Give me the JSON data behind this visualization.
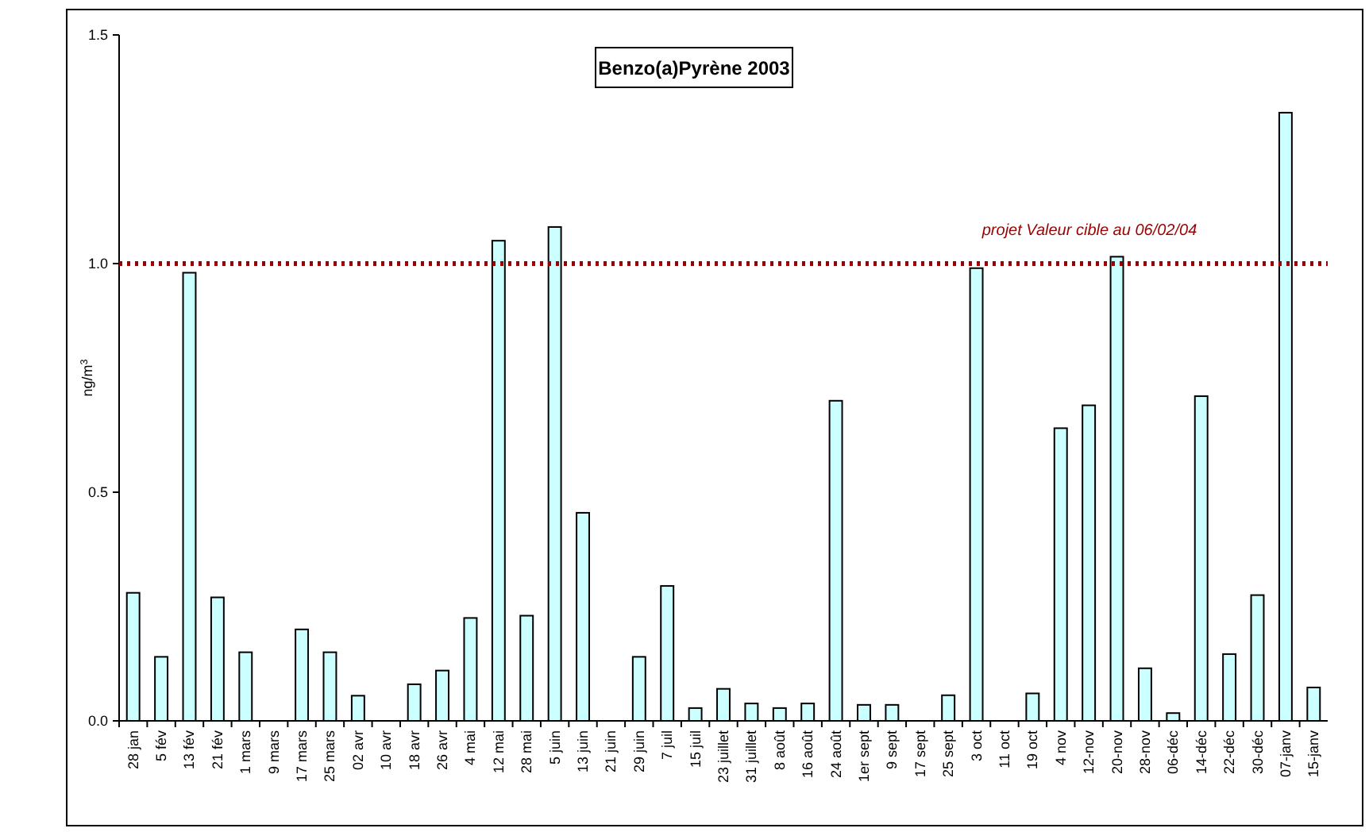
{
  "chart_data": {
    "type": "bar",
    "title": "Benzo(a)Pyrène 2003",
    "ylabel": "ng/m$^{3}$",
    "categories": [
      "28 jan",
      "5 fév",
      "13 fév",
      "21 fév",
      "1 mars",
      "9 mars",
      "17 mars",
      "25 mars",
      "02 avr",
      "10 avr",
      "18 avr",
      "26 avr",
      "4 mai",
      "12 mai",
      "28 mai",
      "5 juin",
      "13 juin",
      "21 juin",
      "29 juin",
      "7 juil",
      "15 juil",
      "23 juillet",
      "31 juillet",
      "8 août",
      "16 août",
      "24 août",
      "1er sept",
      "9 sept",
      "17 sept",
      "25 sept",
      "3 oct",
      "11 oct",
      "19 oct",
      "4 nov",
      "12-nov",
      "20-nov",
      "28-nov",
      "06-déc",
      "14-déc",
      "22-déc",
      "30-déc",
      "07-janv",
      "15-janv"
    ],
    "values": [
      0.28,
      0.14,
      0.98,
      0.27,
      0.15,
      null,
      0.2,
      0.15,
      0.055,
      null,
      0.08,
      0.11,
      0.225,
      1.05,
      0.23,
      1.08,
      0.455,
      null,
      0.14,
      0.295,
      0.028,
      0.07,
      0.038,
      0.028,
      0.038,
      0.7,
      0.035,
      0.035,
      null,
      0.056,
      0.99,
      null,
      0.06,
      0.64,
      0.69,
      1.015,
      0.115,
      0.017,
      0.71,
      0.146,
      0.275,
      1.33,
      0.073
    ],
    "color": "#ccffff",
    "ylim": [
      0,
      1.5
    ],
    "yticks": [
      {
        "value": 0,
        "label": "0.0"
      },
      {
        "value": 0.5,
        "label": "0.5"
      },
      {
        "value": 1,
        "label": "1.0"
      },
      1.5
    ],
    "ref_lines": [
      {
        "axis": "y",
        "value": 1,
        "label": "projet Valeur cible au 06/02/04",
        "color": "#990000",
        "line_style": "dotted"
      }
    ]
  }
}
